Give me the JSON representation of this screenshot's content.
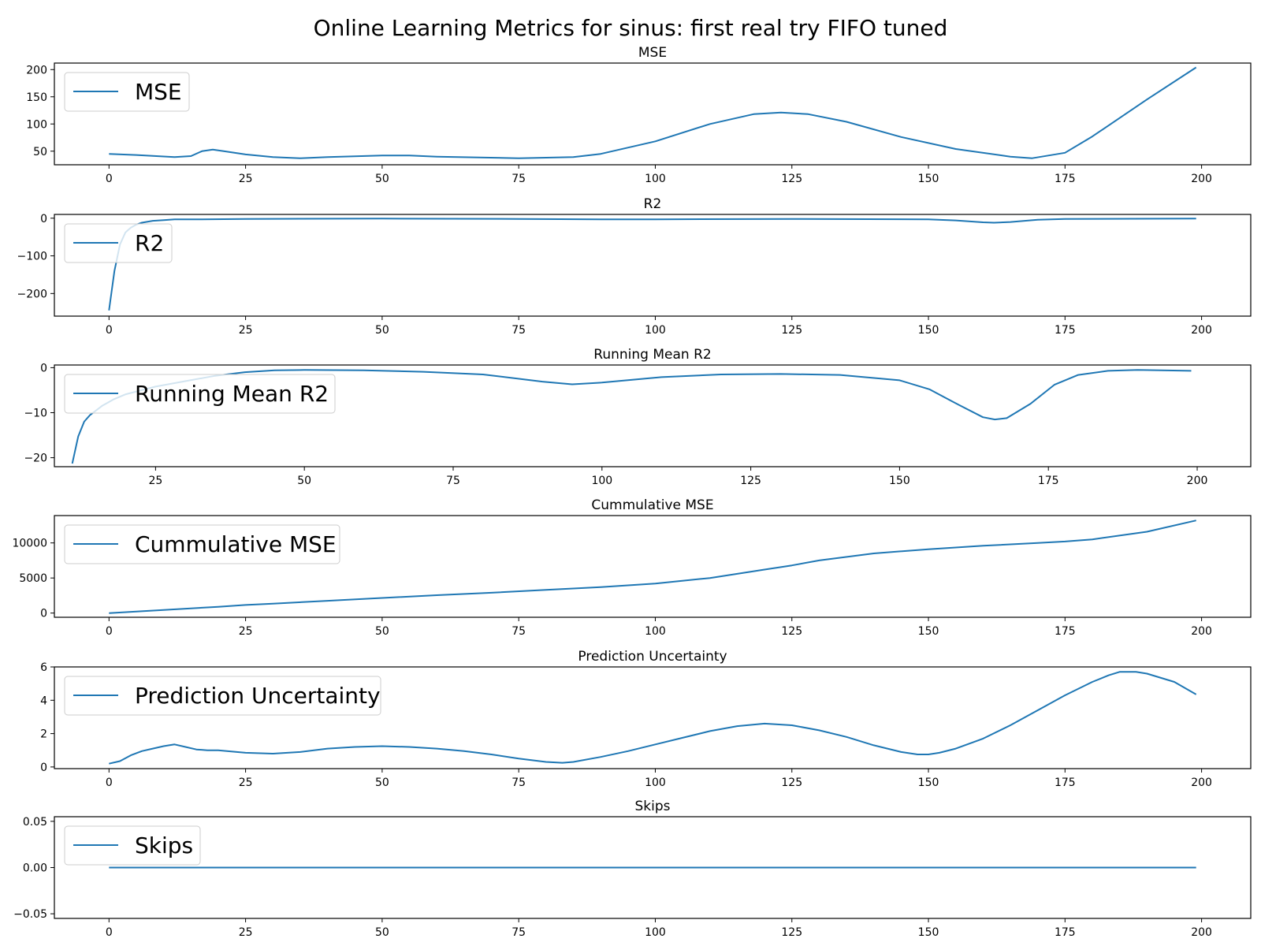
{
  "figure": {
    "title": "Online Learning Metrics for sinus: first real try FIFO tuned",
    "line_color": "#1f77b4"
  },
  "chart_data": [
    {
      "type": "line",
      "title": "MSE",
      "legend": "MSE",
      "legend_position": "top-left",
      "xlim": [
        -10,
        209
      ],
      "ylim": [
        25,
        212
      ],
      "xticks": [
        0,
        25,
        50,
        75,
        100,
        125,
        150,
        175,
        200
      ],
      "yticks": [
        50,
        100,
        150,
        200
      ],
      "series": [
        {
          "name": "MSE",
          "x": [
            0,
            5,
            12,
            15,
            17,
            19,
            21,
            25,
            30,
            35,
            40,
            50,
            55,
            60,
            75,
            85,
            90,
            100,
            110,
            118,
            123,
            128,
            135,
            145,
            155,
            165,
            169,
            175,
            180,
            190,
            199
          ],
          "y": [
            45,
            43,
            39,
            41,
            50,
            53,
            50,
            44,
            39,
            37,
            39,
            42,
            42,
            40,
            37,
            39,
            45,
            68,
            100,
            118,
            121,
            118,
            104,
            76,
            54,
            40,
            37,
            47,
            77,
            145,
            204
          ]
        }
      ]
    },
    {
      "type": "line",
      "title": "R2",
      "legend": "R2",
      "legend_position": "top-left",
      "xlim": [
        -10,
        209
      ],
      "ylim": [
        -260,
        10
      ],
      "xticks": [
        0,
        25,
        50,
        75,
        100,
        125,
        150,
        175,
        200
      ],
      "yticks": [
        0,
        -100,
        -200
      ],
      "series": [
        {
          "name": "R2",
          "x": [
            0,
            1,
            2,
            3,
            4,
            5,
            6,
            8,
            10,
            12,
            15,
            17,
            25,
            50,
            75,
            90,
            100,
            125,
            150,
            155,
            160,
            162,
            165,
            170,
            175,
            199
          ],
          "y": [
            -245,
            -140,
            -70,
            -38,
            -25,
            -17,
            -12,
            -7,
            -5,
            -3,
            -3,
            -3,
            -2,
            -1,
            -2,
            -3,
            -3,
            -2,
            -3,
            -6,
            -11,
            -12,
            -10,
            -4,
            -2,
            -1
          ]
        }
      ]
    },
    {
      "type": "line",
      "title": "Running Mean R2",
      "legend": "Running Mean R2",
      "legend_position": "top-left",
      "xlim": [
        8,
        209
      ],
      "ylim": [
        -22,
        0.6
      ],
      "xticks": [
        25,
        50,
        75,
        100,
        125,
        150,
        175,
        200
      ],
      "yticks": [
        0,
        -10,
        -20
      ],
      "series": [
        {
          "name": "Running Mean R2",
          "x": [
            11,
            12,
            13,
            14,
            16,
            18,
            20,
            25,
            30,
            35,
            40,
            45,
            50,
            60,
            70,
            80,
            90,
            95,
            100,
            110,
            120,
            130,
            140,
            150,
            155,
            160,
            164,
            166,
            168,
            172,
            176,
            180,
            185,
            190,
            199
          ],
          "y": [
            -21.3,
            -15.3,
            -12,
            -10.5,
            -8.5,
            -7,
            -5.9,
            -4.2,
            -3,
            -1.8,
            -1,
            -0.6,
            -0.5,
            -0.6,
            -0.9,
            -1.5,
            -3.1,
            -3.7,
            -3.3,
            -2.1,
            -1.5,
            -1.4,
            -1.6,
            -2.8,
            -4.8,
            -8.3,
            -11,
            -11.5,
            -11.2,
            -8,
            -3.8,
            -1.6,
            -0.7,
            -0.5,
            -0.7
          ]
        }
      ]
    },
    {
      "type": "line",
      "title": "Cummulative MSE",
      "legend": "Cummulative MSE",
      "legend_position": "top-left",
      "xlim": [
        -10,
        209
      ],
      "ylim": [
        -600,
        13900
      ],
      "xticks": [
        0,
        25,
        50,
        75,
        100,
        125,
        150,
        175,
        200
      ],
      "yticks": [
        0,
        5000,
        10000
      ],
      "series": [
        {
          "name": "Cummulative MSE",
          "x": [
            0,
            10,
            20,
            25,
            30,
            40,
            50,
            60,
            70,
            80,
            90,
            100,
            110,
            120,
            125,
            130,
            140,
            150,
            160,
            170,
            175,
            180,
            190,
            199
          ],
          "y": [
            0,
            450,
            900,
            1150,
            1350,
            1750,
            2150,
            2550,
            2900,
            3300,
            3700,
            4200,
            5000,
            6200,
            6800,
            7500,
            8500,
            9100,
            9600,
            10000,
            10200,
            10500,
            11600,
            13200
          ]
        }
      ]
    },
    {
      "type": "line",
      "title": "Prediction Uncertainty",
      "legend": "Prediction Uncertainty",
      "legend_position": "top-left",
      "xlim": [
        -10,
        209
      ],
      "ylim": [
        -0.1,
        6
      ],
      "xticks": [
        0,
        25,
        50,
        75,
        100,
        125,
        150,
        175,
        200
      ],
      "yticks": [
        0,
        2,
        4,
        6
      ],
      "series": [
        {
          "name": "Prediction Uncertainty",
          "x": [
            0,
            2,
            4,
            6,
            8,
            10,
            12,
            14,
            16,
            18,
            20,
            25,
            30,
            35,
            40,
            45,
            50,
            55,
            60,
            65,
            70,
            75,
            80,
            83,
            85,
            90,
            95,
            100,
            105,
            110,
            115,
            120,
            125,
            130,
            135,
            140,
            145,
            148,
            150,
            152,
            155,
            160,
            165,
            170,
            175,
            180,
            183,
            185,
            188,
            190,
            195,
            199
          ],
          "y": [
            0.2,
            0.35,
            0.7,
            0.95,
            1.1,
            1.25,
            1.35,
            1.2,
            1.05,
            1.0,
            1.0,
            0.85,
            0.8,
            0.9,
            1.1,
            1.2,
            1.25,
            1.2,
            1.1,
            0.95,
            0.75,
            0.5,
            0.3,
            0.25,
            0.3,
            0.6,
            0.95,
            1.35,
            1.75,
            2.15,
            2.45,
            2.6,
            2.5,
            2.2,
            1.8,
            1.3,
            0.9,
            0.75,
            0.75,
            0.85,
            1.1,
            1.7,
            2.5,
            3.4,
            4.3,
            5.1,
            5.5,
            5.7,
            5.7,
            5.6,
            5.1,
            4.35
          ]
        }
      ]
    },
    {
      "type": "line",
      "title": "Skips",
      "legend": "Skips",
      "legend_position": "top-left",
      "xlim": [
        -10,
        209
      ],
      "ylim": [
        -0.055,
        0.055
      ],
      "xticks": [
        0,
        25,
        50,
        75,
        100,
        125,
        150,
        175,
        200
      ],
      "yticks": [
        0.05,
        0.0,
        -0.05
      ],
      "ytick_labels": [
        "0.05",
        "0.00",
        "−0.05"
      ],
      "series": [
        {
          "name": "Skips",
          "x": [
            0,
            199
          ],
          "y": [
            0,
            0
          ]
        }
      ]
    }
  ]
}
